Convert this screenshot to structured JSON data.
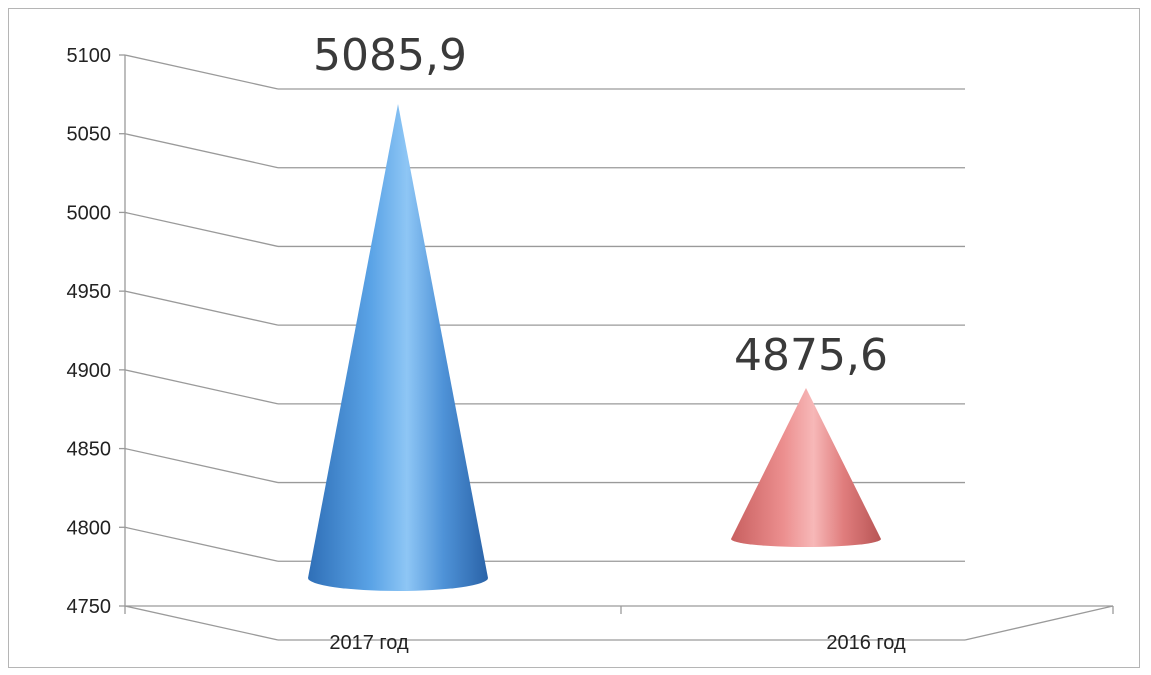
{
  "chart_data": {
    "type": "bar",
    "style": "3d-cone",
    "categories": [
      "2017 год",
      "2016 год"
    ],
    "values": [
      5085.9,
      4875.6
    ],
    "data_labels": [
      "5085,9",
      "4875,6"
    ],
    "title": "",
    "xlabel": "",
    "ylabel": "",
    "ylim": [
      4750,
      5100
    ],
    "yticks": [
      4750,
      4800,
      4850,
      4900,
      4950,
      5000,
      5050,
      5100
    ],
    "grid": true,
    "legend": "none",
    "colors": [
      "#4a90d9",
      "#e38080"
    ]
  }
}
